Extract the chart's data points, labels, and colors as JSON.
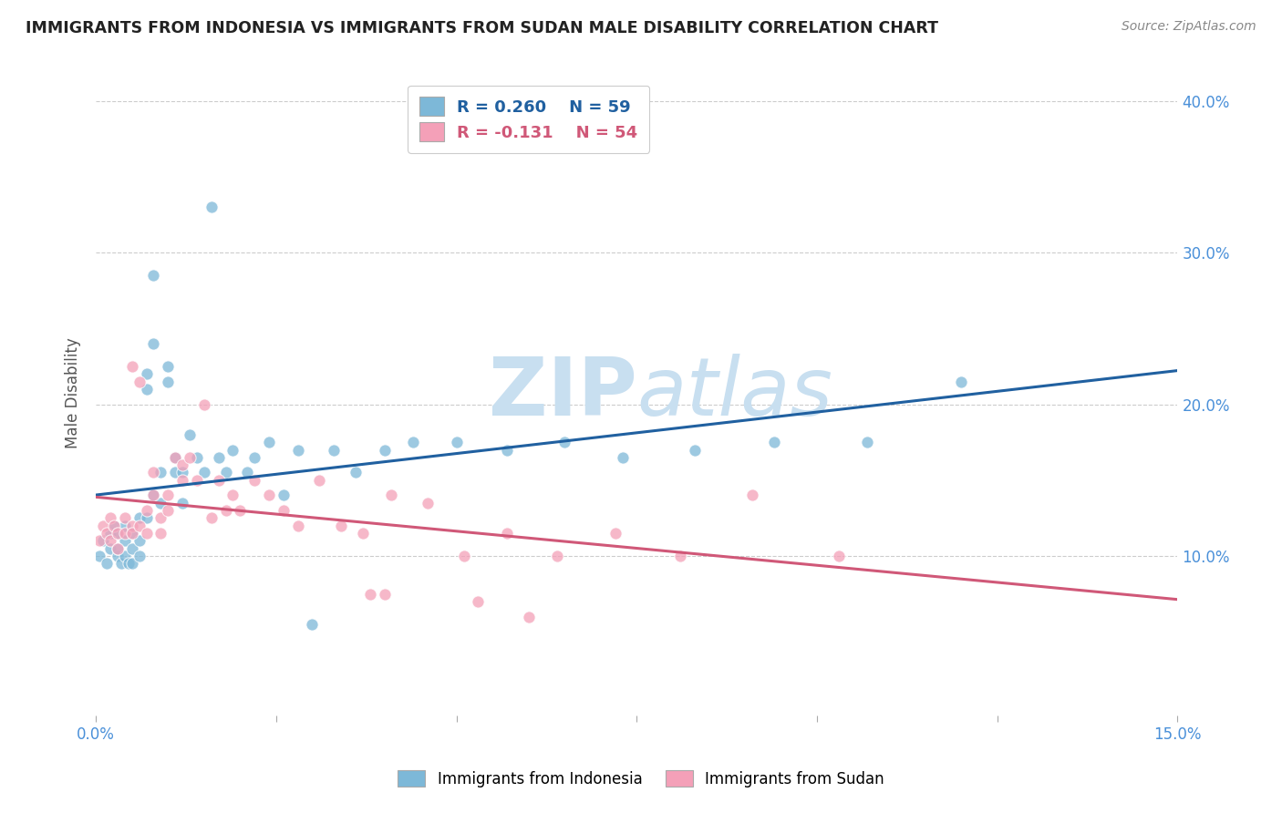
{
  "title": "IMMIGRANTS FROM INDONESIA VS IMMIGRANTS FROM SUDAN MALE DISABILITY CORRELATION CHART",
  "source": "Source: ZipAtlas.com",
  "ylabel": "Male Disability",
  "xlim": [
    0.0,
    0.15
  ],
  "ylim": [
    -0.005,
    0.42
  ],
  "yticks": [
    0.1,
    0.2,
    0.3,
    0.4
  ],
  "ytick_labels": [
    "10.0%",
    "20.0%",
    "30.0%",
    "40.0%"
  ],
  "legend_r1": "R = 0.260",
  "legend_n1": "N = 59",
  "legend_r2": "R = -0.131",
  "legend_n2": "N = 54",
  "color_indonesia": "#7db8d8",
  "color_sudan": "#f4a0b8",
  "color_line_indonesia": "#2060a0",
  "color_line_sudan": "#d05878",
  "background_color": "#ffffff",
  "grid_color": "#cccccc",
  "watermark_zip": "ZIP",
  "watermark_atlas": "atlas",
  "watermark_color": "#c8dff0",
  "title_color": "#222222",
  "axis_label_color": "#4a90d9",
  "ylabel_color": "#555555",
  "indonesia_x": [
    0.0005,
    0.001,
    0.0015,
    0.002,
    0.002,
    0.0025,
    0.003,
    0.003,
    0.003,
    0.0035,
    0.004,
    0.004,
    0.004,
    0.0045,
    0.005,
    0.005,
    0.005,
    0.006,
    0.006,
    0.006,
    0.007,
    0.007,
    0.007,
    0.008,
    0.008,
    0.008,
    0.009,
    0.009,
    0.01,
    0.01,
    0.011,
    0.011,
    0.012,
    0.012,
    0.013,
    0.014,
    0.015,
    0.016,
    0.017,
    0.018,
    0.019,
    0.021,
    0.022,
    0.024,
    0.026,
    0.028,
    0.03,
    0.033,
    0.036,
    0.04,
    0.044,
    0.05,
    0.057,
    0.065,
    0.073,
    0.083,
    0.094,
    0.107,
    0.12
  ],
  "indonesia_y": [
    0.1,
    0.11,
    0.095,
    0.115,
    0.105,
    0.12,
    0.1,
    0.115,
    0.105,
    0.095,
    0.11,
    0.12,
    0.1,
    0.095,
    0.115,
    0.105,
    0.095,
    0.125,
    0.11,
    0.1,
    0.22,
    0.21,
    0.125,
    0.285,
    0.24,
    0.14,
    0.155,
    0.135,
    0.225,
    0.215,
    0.155,
    0.165,
    0.155,
    0.135,
    0.18,
    0.165,
    0.155,
    0.33,
    0.165,
    0.155,
    0.17,
    0.155,
    0.165,
    0.175,
    0.14,
    0.17,
    0.055,
    0.17,
    0.155,
    0.17,
    0.175,
    0.175,
    0.17,
    0.175,
    0.165,
    0.17,
    0.175,
    0.175,
    0.215
  ],
  "sudan_x": [
    0.0005,
    0.001,
    0.0015,
    0.002,
    0.002,
    0.0025,
    0.003,
    0.003,
    0.004,
    0.004,
    0.005,
    0.005,
    0.005,
    0.006,
    0.006,
    0.007,
    0.007,
    0.008,
    0.008,
    0.009,
    0.009,
    0.01,
    0.01,
    0.011,
    0.012,
    0.012,
    0.013,
    0.014,
    0.015,
    0.016,
    0.017,
    0.018,
    0.019,
    0.02,
    0.022,
    0.024,
    0.026,
    0.028,
    0.031,
    0.034,
    0.037,
    0.041,
    0.046,
    0.051,
    0.057,
    0.064,
    0.072,
    0.081,
    0.091,
    0.103,
    0.04,
    0.038,
    0.053,
    0.06
  ],
  "sudan_y": [
    0.11,
    0.12,
    0.115,
    0.125,
    0.11,
    0.12,
    0.115,
    0.105,
    0.125,
    0.115,
    0.225,
    0.12,
    0.115,
    0.12,
    0.215,
    0.13,
    0.115,
    0.14,
    0.155,
    0.125,
    0.115,
    0.14,
    0.13,
    0.165,
    0.16,
    0.15,
    0.165,
    0.15,
    0.2,
    0.125,
    0.15,
    0.13,
    0.14,
    0.13,
    0.15,
    0.14,
    0.13,
    0.12,
    0.15,
    0.12,
    0.115,
    0.14,
    0.135,
    0.1,
    0.115,
    0.1,
    0.115,
    0.1,
    0.14,
    0.1,
    0.075,
    0.075,
    0.07,
    0.06
  ]
}
